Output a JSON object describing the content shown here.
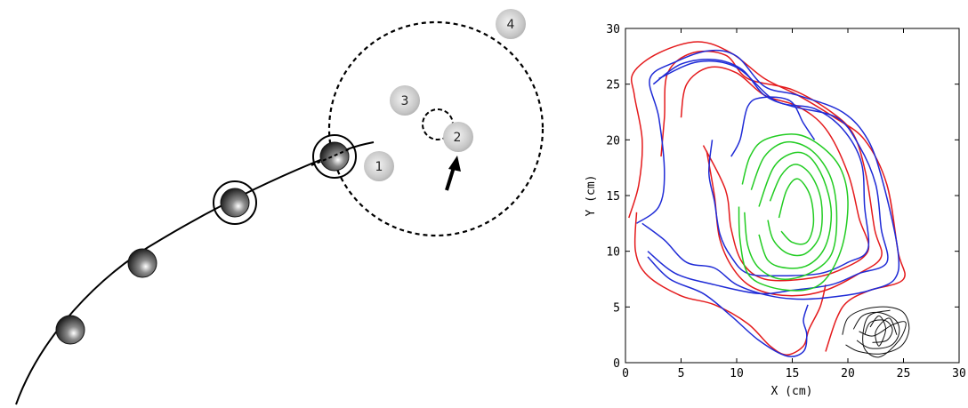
{
  "left_panel": {
    "ball_labels": [
      "1",
      "2",
      "3",
      "4"
    ]
  },
  "chart_data": {
    "type": "line",
    "title": "",
    "xlabel": "X (cm)",
    "ylabel": "Y (cm)",
    "xlim": [
      0,
      30
    ],
    "ylim": [
      0,
      30
    ],
    "xticks": [
      0,
      5,
      10,
      15,
      20,
      25,
      30
    ],
    "yticks": [
      0,
      5,
      10,
      15,
      20,
      25,
      30
    ],
    "grid": false,
    "series_colors": {
      "red": "#e41a1c",
      "blue": "#1f2bd6",
      "green": "#22cc22",
      "black": "#111111"
    },
    "series": [
      {
        "color": "red",
        "loops": [
          [
            [
              0.3,
              13
            ],
            [
              1.2,
              16
            ],
            [
              1.5,
              20
            ],
            [
              0.8,
              24
            ],
            [
              0.7,
              26
            ],
            [
              3,
              27.8
            ],
            [
              6.5,
              28.8
            ],
            [
              9.5,
              27.8
            ],
            [
              12.5,
              25.5
            ],
            [
              15.5,
              24
            ],
            [
              18.8,
              22
            ],
            [
              21.5,
              20
            ],
            [
              23.5,
              16
            ],
            [
              24.5,
              10
            ],
            [
              25,
              7.5
            ],
            [
              22,
              6.5
            ],
            [
              20,
              5.5
            ],
            [
              19,
              4
            ],
            [
              18,
              1
            ]
          ],
          [
            [
              3.2,
              18.5
            ],
            [
              3.5,
              22
            ],
            [
              3.8,
              26
            ],
            [
              6,
              27.8
            ],
            [
              9,
              27.6
            ],
            [
              11,
              25.5
            ],
            [
              15,
              24.5
            ],
            [
              18.5,
              22.5
            ],
            [
              20.5,
              20.5
            ],
            [
              21.6,
              17
            ],
            [
              22.4,
              12
            ],
            [
              23,
              9.5
            ],
            [
              21,
              8
            ],
            [
              18,
              6.5
            ],
            [
              15,
              6
            ],
            [
              12,
              6.5
            ],
            [
              10,
              8
            ],
            [
              8.5,
              11
            ],
            [
              8,
              15
            ],
            [
              7.3,
              19
            ]
          ],
          [
            [
              5,
              22
            ],
            [
              5.5,
              25
            ],
            [
              7.5,
              26.5
            ],
            [
              10,
              26
            ],
            [
              12.5,
              24
            ],
            [
              15.5,
              23
            ],
            [
              18,
              21
            ],
            [
              20,
              17
            ],
            [
              21,
              13
            ],
            [
              21.8,
              10
            ],
            [
              19,
              8.2
            ],
            [
              16,
              7.5
            ],
            [
              12.5,
              7.5
            ],
            [
              10.5,
              9
            ],
            [
              9.5,
              12
            ],
            [
              9,
              15.5
            ],
            [
              7,
              19.5
            ]
          ],
          [
            [
              1,
              13.5
            ],
            [
              0.9,
              10
            ],
            [
              2,
              7.8
            ],
            [
              5,
              6
            ],
            [
              8,
              5.2
            ],
            [
              11,
              3.5
            ],
            [
              13,
              1.5
            ],
            [
              14.5,
              0.7
            ],
            [
              16,
              1.5
            ],
            [
              16.5,
              3
            ],
            [
              17.5,
              5
            ],
            [
              18,
              7
            ]
          ]
        ]
      },
      {
        "color": "blue",
        "loops": [
          [
            [
              1,
              12.5
            ],
            [
              3,
              14
            ],
            [
              3.5,
              17
            ],
            [
              3,
              22
            ],
            [
              2.2,
              25.5
            ],
            [
              4.5,
              27
            ],
            [
              7.5,
              28
            ],
            [
              10,
              27.5
            ],
            [
              12.5,
              24.8
            ],
            [
              15.5,
              24
            ],
            [
              19.5,
              22.5
            ],
            [
              21.8,
              20
            ],
            [
              23.2,
              16
            ],
            [
              24.5,
              10
            ],
            [
              24.2,
              7.5
            ],
            [
              22,
              6.5
            ],
            [
              19.5,
              6
            ],
            [
              16,
              5.7
            ],
            [
              13,
              6
            ],
            [
              10,
              7
            ],
            [
              8,
              8.5
            ],
            [
              5.5,
              9
            ],
            [
              3.5,
              11
            ],
            [
              1.5,
              12.5
            ]
          ],
          [
            [
              2.5,
              25
            ],
            [
              5,
              26.8
            ],
            [
              8,
              27.2
            ],
            [
              10.5,
              26.3
            ],
            [
              12.5,
              24
            ],
            [
              15,
              23
            ],
            [
              19,
              22
            ],
            [
              21,
              19.5
            ],
            [
              22.5,
              16
            ],
            [
              23,
              12
            ],
            [
              23.5,
              9
            ],
            [
              21,
              8
            ],
            [
              18.5,
              7
            ],
            [
              15,
              6.5
            ],
            [
              12,
              6.2
            ],
            [
              8,
              7
            ],
            [
              4.5,
              8
            ],
            [
              2,
              10
            ]
          ],
          [
            [
              3,
              25.5
            ],
            [
              6.5,
              27
            ],
            [
              10,
              26.5
            ],
            [
              13.5,
              23.5
            ],
            [
              17,
              22.8
            ],
            [
              19.5,
              21
            ],
            [
              21.2,
              18
            ],
            [
              21.5,
              14
            ],
            [
              21.8,
              10.2
            ],
            [
              20,
              9
            ],
            [
              17.5,
              8
            ],
            [
              14,
              7.8
            ],
            [
              11,
              8
            ],
            [
              9.5,
              9.5
            ],
            [
              8.5,
              11.5
            ],
            [
              8,
              14.5
            ],
            [
              7.5,
              17
            ],
            [
              7.8,
              20
            ]
          ],
          [
            [
              2,
              9.5
            ],
            [
              4,
              7.5
            ],
            [
              7,
              6.2
            ],
            [
              9.5,
              4.2
            ],
            [
              12,
              2
            ],
            [
              14.5,
              0.6
            ],
            [
              16,
              1
            ],
            [
              16.3,
              2.5
            ],
            [
              16,
              3.8
            ],
            [
              16.4,
              5.2
            ]
          ],
          [
            [
              9.5,
              18.5
            ],
            [
              10.3,
              20
            ],
            [
              11,
              23
            ],
            [
              12.3,
              23.8
            ],
            [
              14.8,
              23.5
            ],
            [
              16,
              21.5
            ],
            [
              17,
              20
            ]
          ]
        ]
      },
      {
        "color": "green",
        "loops": [
          [
            [
              10.5,
              16
            ],
            [
              11.2,
              18.5
            ],
            [
              12.5,
              20
            ],
            [
              15.3,
              20.5
            ],
            [
              17.5,
              19.5
            ],
            [
              19.3,
              17.5
            ],
            [
              20,
              14.5
            ],
            [
              19.5,
              10.5
            ],
            [
              18,
              7.5
            ],
            [
              16,
              6.5
            ],
            [
              13,
              6.8
            ],
            [
              11,
              8
            ],
            [
              10.3,
              11
            ],
            [
              10.2,
              14
            ]
          ],
          [
            [
              11.3,
              15.5
            ],
            [
              12.5,
              18.5
            ],
            [
              14.5,
              19.8
            ],
            [
              16.8,
              19
            ],
            [
              18.5,
              16.5
            ],
            [
              19,
              13
            ],
            [
              18.5,
              9.7
            ],
            [
              16.5,
              8
            ],
            [
              14,
              7.5
            ],
            [
              12,
              8.5
            ],
            [
              11,
              10.5
            ],
            [
              10.7,
              13.5
            ]
          ],
          [
            [
              12,
              14
            ],
            [
              13.3,
              17.5
            ],
            [
              15,
              18.8
            ],
            [
              16.5,
              18.5
            ],
            [
              17.8,
              16.5
            ],
            [
              18.5,
              13.5
            ],
            [
              18,
              10.5
            ],
            [
              16.5,
              8.8
            ],
            [
              14.5,
              8.5
            ],
            [
              12.8,
              9.2
            ],
            [
              12,
              11.5
            ]
          ],
          [
            [
              13,
              14.5
            ],
            [
              14,
              16.8
            ],
            [
              15.3,
              17.8
            ],
            [
              16.7,
              16.8
            ],
            [
              17.6,
              14.5
            ],
            [
              17.5,
              11.5
            ],
            [
              16.2,
              9.8
            ],
            [
              14.6,
              9.8
            ],
            [
              13.3,
              11
            ],
            [
              12.8,
              12.8
            ]
          ],
          [
            [
              13.8,
              13
            ],
            [
              14.5,
              15.5
            ],
            [
              15.5,
              16.5
            ],
            [
              16.6,
              15
            ],
            [
              16.9,
              12.5
            ],
            [
              16.3,
              10.8
            ],
            [
              15,
              10.8
            ],
            [
              14,
              11.8
            ]
          ]
        ]
      },
      {
        "color": "black",
        "loops": [
          [
            [
              19.5,
              2.5
            ],
            [
              20,
              4
            ],
            [
              21.5,
              4.8
            ],
            [
              23.5,
              5
            ],
            [
              25,
              4.5
            ],
            [
              25.5,
              3
            ],
            [
              24.8,
              1.5
            ],
            [
              23,
              0.8
            ],
            [
              21,
              1
            ],
            [
              19.8,
              1.6
            ]
          ],
          [
            [
              20.5,
              3
            ],
            [
              21.3,
              4.2
            ],
            [
              22.8,
              4.5
            ],
            [
              24.3,
              3.8
            ],
            [
              24.6,
              2.6
            ],
            [
              23.8,
              1.5
            ],
            [
              22,
              1.3
            ],
            [
              20.8,
              2
            ]
          ],
          [
            [
              21.5,
              2.5
            ],
            [
              22,
              3.6
            ],
            [
              23.3,
              3.8
            ],
            [
              24,
              3
            ],
            [
              23.5,
              2
            ],
            [
              22.2,
              1.8
            ]
          ],
          [
            [
              22,
              3.2
            ],
            [
              22.8,
              4.2
            ],
            [
              23.4,
              3
            ],
            [
              22.8,
              1.5
            ],
            [
              22.5,
              2.8
            ],
            [
              23.7,
              4
            ],
            [
              24.4,
              2.5
            ]
          ],
          [
            [
              21,
              2.8
            ],
            [
              22.3,
              2.4
            ],
            [
              24,
              3.4
            ],
            [
              25.2,
              3.6
            ],
            [
              24.6,
              2
            ],
            [
              22.8,
              0.5
            ],
            [
              21.4,
              1.5
            ],
            [
              21.8,
              4.1
            ],
            [
              23.8,
              4.7
            ]
          ]
        ]
      }
    ]
  }
}
